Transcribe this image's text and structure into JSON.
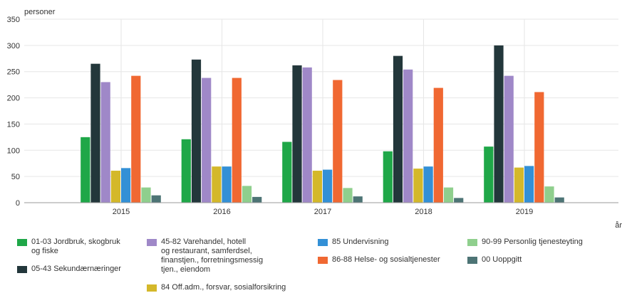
{
  "chart_data": {
    "type": "bar",
    "ylabel": "personer",
    "xlabel": "år",
    "ylim": [
      0,
      350
    ],
    "yticks": [
      0,
      50,
      100,
      150,
      200,
      250,
      300,
      350
    ],
    "grid": true,
    "legend_position": "bottom",
    "categories": [
      "2015",
      "2016",
      "2017",
      "2018",
      "2019"
    ],
    "series": [
      {
        "name": "01-03 Jordbruk, skogbruk og fiske",
        "color": "#1fa748",
        "values": [
          125,
          121,
          116,
          98,
          107
        ]
      },
      {
        "name": "05-43 Sekundærnæringer",
        "color": "#23373b",
        "values": [
          265,
          273,
          262,
          280,
          300
        ]
      },
      {
        "name": "45-82 Varehandel, hotell og restaurant, samferdsel, finanstjen., forretningsmessig tjen., eiendom",
        "color": "#9f88c8",
        "values": [
          230,
          238,
          258,
          254,
          242
        ]
      },
      {
        "name": "84 Off.adm., forsvar, sosialforsikring",
        "color": "#d4b82a",
        "values": [
          61,
          69,
          61,
          65,
          67
        ]
      },
      {
        "name": "85 Undervisning",
        "color": "#3390d6",
        "values": [
          66,
          69,
          63,
          69,
          70
        ]
      },
      {
        "name": "86-88 Helse- og sosialtjenester",
        "color": "#f06832",
        "values": [
          242,
          238,
          234,
          219,
          211
        ]
      },
      {
        "name": "90-99 Personlig tjenesteyting",
        "color": "#8fcf8d",
        "values": [
          29,
          32,
          28,
          29,
          31
        ]
      },
      {
        "name": "00 Uoppgitt",
        "color": "#4d7475",
        "values": [
          14,
          11,
          12,
          9,
          10
        ]
      }
    ]
  },
  "legend": [
    {
      "label": "01-03 Jordbruk, skogbruk\nog fiske",
      "color": "#1fa748"
    },
    {
      "label": "05-43 Sekundærnæringer",
      "color": "#23373b"
    },
    {
      "label": "45-82 Varehandel, hotell\nog restaurant, samferdsel,\nfinanstjen., forretningsmessig\ntjen., eiendom",
      "color": "#9f88c8"
    },
    {
      "label": "84 Off.adm., forsvar, sosialforsikring",
      "color": "#d4b82a"
    },
    {
      "label": "85 Undervisning",
      "color": "#3390d6"
    },
    {
      "label": "86-88 Helse- og sosialtjenester",
      "color": "#f06832"
    },
    {
      "label": "90-99 Personlig tjenesteyting",
      "color": "#8fcf8d"
    },
    {
      "label": "00 Uoppgitt",
      "color": "#4d7475"
    }
  ]
}
